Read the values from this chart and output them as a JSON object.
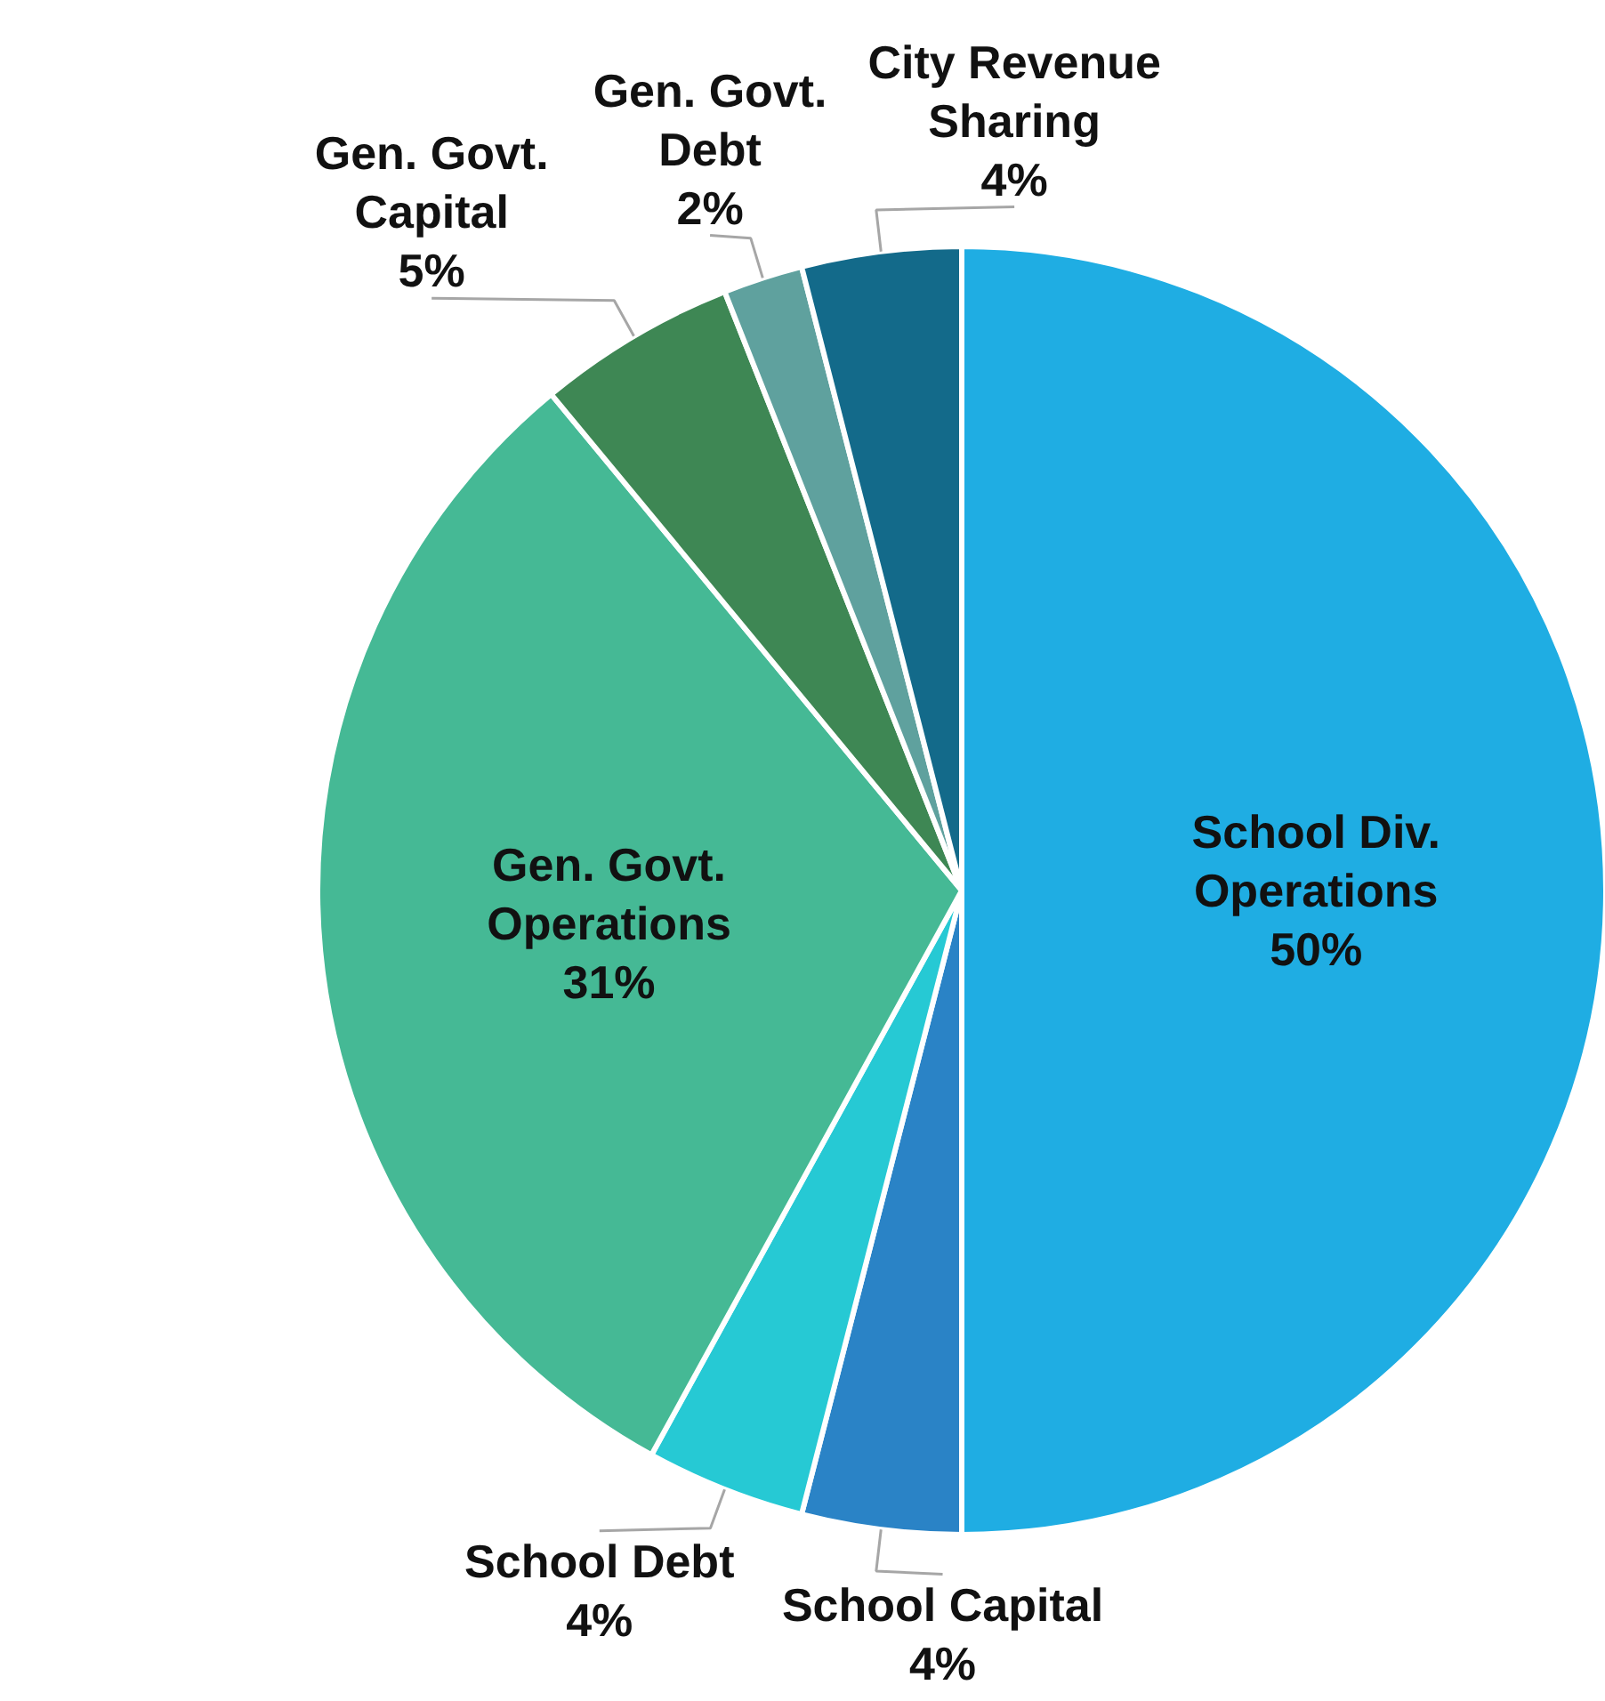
{
  "chart_data": {
    "type": "pie",
    "categories": [
      "School Div. Operations",
      "School Capital",
      "School Debt",
      "Gen. Govt. Operations",
      "Gen. Govt. Capital",
      "Gen. Govt. Debt",
      "City Revenue Sharing"
    ],
    "values": [
      50,
      4,
      4,
      31,
      5,
      2,
      4
    ],
    "value_labels": [
      "50%",
      "4%",
      "4%",
      "31%",
      "5%",
      "2%",
      "4%"
    ],
    "colors": [
      "#1fade3",
      "#2a83c6",
      "#26c9d4",
      "#45b995",
      "#3e8754",
      "#5fa19e",
      "#136a8a"
    ],
    "legend": false
  }
}
